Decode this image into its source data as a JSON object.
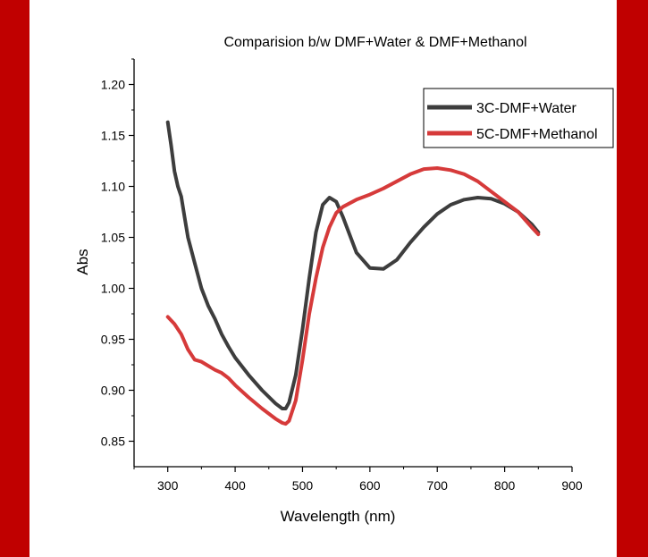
{
  "colors": {
    "frame": "#c00000",
    "water": "#3d3d3d",
    "methanol": "#d63a3a"
  },
  "chart_data": {
    "type": "line",
    "title": "Comparision b/w DMF+Water & DMF+Methanol",
    "xlabel": "Wavelength (nm)",
    "ylabel": "Abs",
    "xlim": [
      250,
      900
    ],
    "ylim": [
      0.825,
      1.225
    ],
    "xticks": [
      "300",
      "400",
      "500",
      "600",
      "700",
      "800",
      "900"
    ],
    "yticks": [
      "0.85",
      "0.90",
      "0.95",
      "1.00",
      "1.05",
      "1.10",
      "1.15",
      "1.20"
    ],
    "legend": "top-right",
    "grid": false,
    "series": [
      {
        "name": "3C-DMF+Water",
        "color": "#3d3d3d",
        "x": [
          300,
          305,
          310,
          315,
          320,
          325,
          330,
          340,
          350,
          360,
          370,
          380,
          390,
          400,
          420,
          440,
          460,
          470,
          475,
          480,
          490,
          500,
          510,
          520,
          530,
          540,
          550,
          560,
          580,
          600,
          620,
          640,
          660,
          680,
          700,
          720,
          740,
          760,
          780,
          800,
          820,
          840,
          850
        ],
        "y": [
          1.163,
          1.14,
          1.115,
          1.1,
          1.09,
          1.07,
          1.05,
          1.025,
          1.0,
          0.983,
          0.97,
          0.955,
          0.943,
          0.932,
          0.915,
          0.9,
          0.887,
          0.882,
          0.882,
          0.888,
          0.915,
          0.96,
          1.01,
          1.055,
          1.082,
          1.089,
          1.085,
          1.07,
          1.035,
          1.02,
          1.019,
          1.028,
          1.045,
          1.06,
          1.073,
          1.082,
          1.087,
          1.089,
          1.088,
          1.083,
          1.075,
          1.063,
          1.055
        ]
      },
      {
        "name": "5C-DMF+Methanol",
        "color": "#d63a3a",
        "x": [
          300,
          310,
          320,
          330,
          340,
          350,
          360,
          370,
          380,
          390,
          400,
          420,
          440,
          460,
          470,
          475,
          480,
          490,
          500,
          510,
          520,
          530,
          540,
          550,
          560,
          580,
          600,
          620,
          640,
          660,
          680,
          700,
          720,
          740,
          760,
          780,
          800,
          820,
          840,
          850
        ],
        "y": [
          0.972,
          0.965,
          0.955,
          0.94,
          0.93,
          0.928,
          0.924,
          0.92,
          0.917,
          0.912,
          0.905,
          0.893,
          0.882,
          0.872,
          0.868,
          0.867,
          0.87,
          0.89,
          0.93,
          0.975,
          1.01,
          1.04,
          1.06,
          1.074,
          1.08,
          1.087,
          1.092,
          1.098,
          1.105,
          1.112,
          1.117,
          1.118,
          1.116,
          1.112,
          1.105,
          1.095,
          1.085,
          1.075,
          1.06,
          1.053
        ]
      }
    ]
  }
}
